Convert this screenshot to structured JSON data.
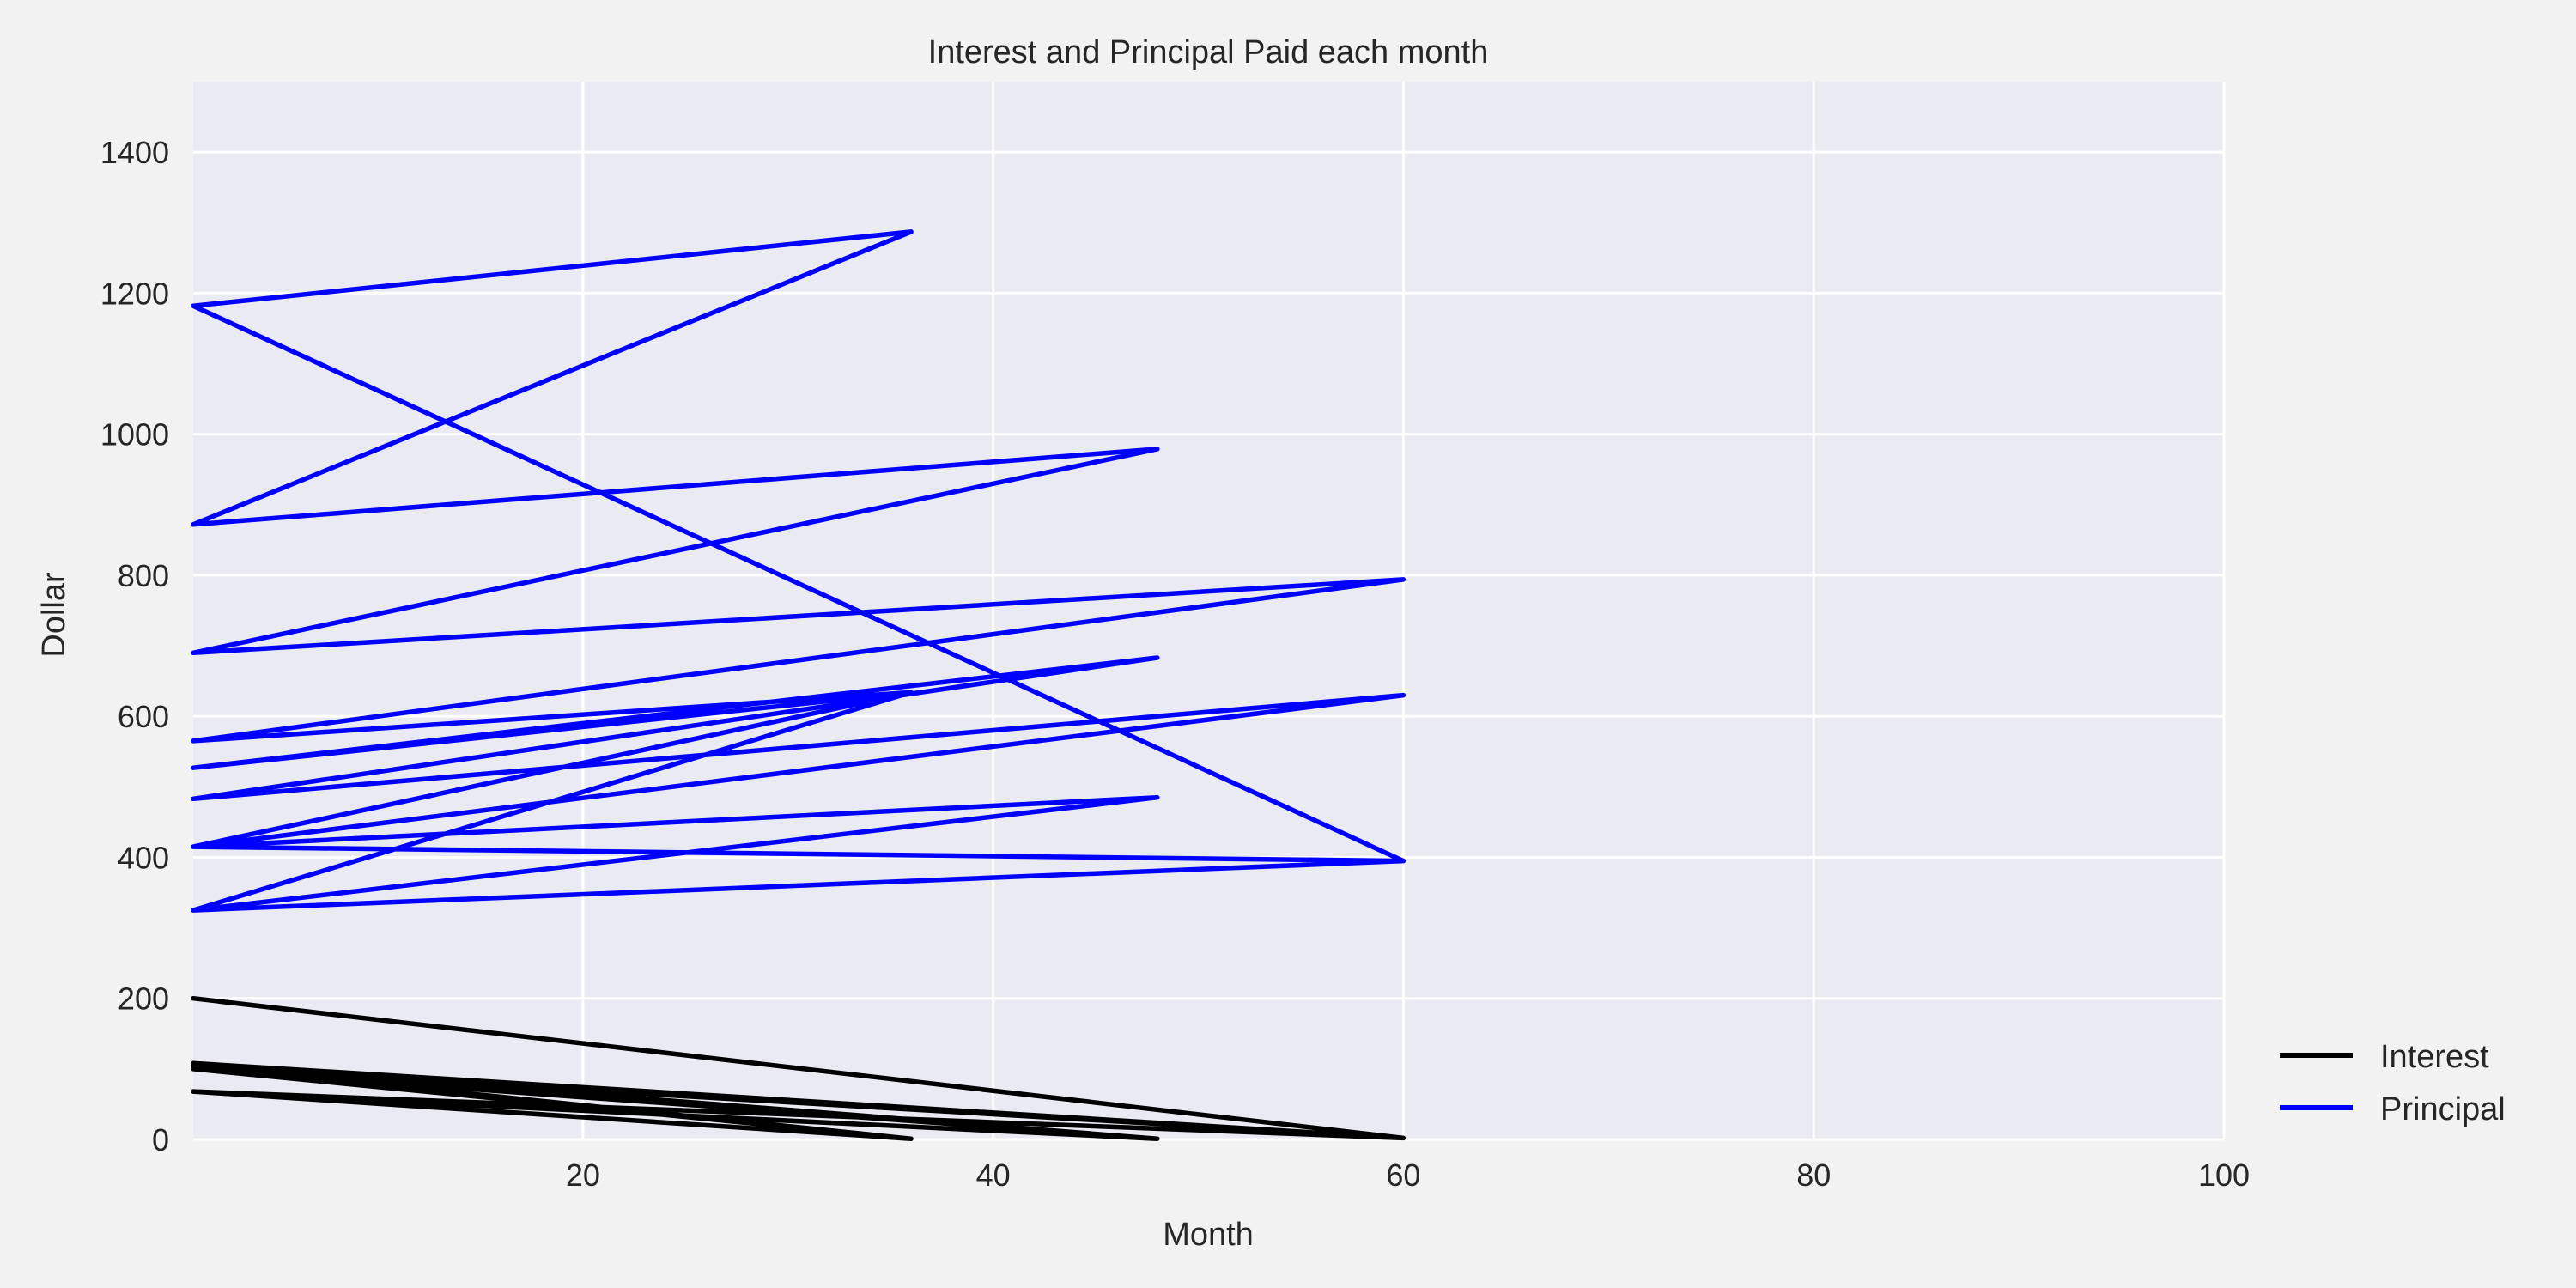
{
  "chart_data": {
    "type": "line",
    "title": "Interest and Principal Paid each month",
    "xlabel": "Month",
    "ylabel": "Dollar",
    "xlim": [
      1,
      100
    ],
    "ylim": [
      0,
      1500
    ],
    "xticks": [
      20,
      40,
      60,
      80,
      100
    ],
    "yticks": [
      0,
      200,
      400,
      600,
      800,
      1000,
      1200,
      1400
    ],
    "grid": true,
    "legend_position": "lower-right, outside",
    "background_color": "#eaeaf2",
    "grid_color": "#ffffff",
    "series": [
      {
        "name": "Interest",
        "color": "#000000",
        "x": [
          1,
          60,
          1,
          36,
          1,
          48,
          1,
          60,
          1,
          36,
          1,
          48,
          1,
          60
        ],
        "y": [
          200,
          2,
          105,
          1,
          100,
          1,
          102,
          2,
          68,
          1,
          68,
          1,
          108,
          2
        ]
      },
      {
        "name": "Principal",
        "color": "#0000ff",
        "x": [
          1,
          60,
          1,
          36,
          1,
          48,
          1,
          60,
          1,
          36,
          1,
          48,
          1,
          60,
          1,
          36,
          1,
          48,
          1,
          60
        ],
        "y": [
          325,
          395,
          1182,
          1287,
          872,
          979,
          690,
          794,
          565,
          634,
          527,
          683,
          483,
          630,
          415,
          634,
          325,
          485,
          415,
          395
        ]
      }
    ],
    "legend": [
      {
        "name": "Interest",
        "color": "#000000"
      },
      {
        "name": "Principal",
        "color": "#0000ff"
      }
    ]
  }
}
